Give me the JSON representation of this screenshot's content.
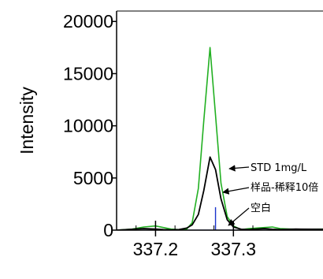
{
  "chart_data": {
    "type": "line",
    "ylabel": "Intensity",
    "xlabel": "",
    "xlim": [
      337.15,
      337.415
    ],
    "ylim": [
      0,
      21000
    ],
    "yticks": [
      0,
      5000,
      10000,
      15000,
      20000
    ],
    "ytick_labels": [
      "0",
      "5000",
      "10000",
      "15000",
      "20000"
    ],
    "xticks": [
      337.2,
      337.3
    ],
    "xtick_labels": [
      "337.2",
      "337.3"
    ],
    "series": [
      {
        "name": "STD 1mg/L",
        "color": "#22b022",
        "x": [
          337.15,
          337.17,
          337.185,
          337.2,
          337.21,
          337.22,
          337.23,
          337.24,
          337.247,
          337.255,
          337.262,
          337.27,
          337.277,
          337.284,
          337.292,
          337.3,
          337.31,
          337.32,
          337.34,
          337.35,
          337.36,
          337.38,
          337.415
        ],
        "y": [
          0,
          100,
          300,
          400,
          250,
          100,
          50,
          100,
          700,
          4000,
          10500,
          17500,
          11000,
          4500,
          1300,
          400,
          50,
          150,
          250,
          300,
          150,
          80,
          100
        ]
      },
      {
        "name": "样品-稀释10倍",
        "color": "#000000",
        "x": [
          337.15,
          337.17,
          337.185,
          337.2,
          337.21,
          337.22,
          337.23,
          337.24,
          337.247,
          337.255,
          337.262,
          337.27,
          337.277,
          337.284,
          337.292,
          337.3,
          337.31,
          337.32,
          337.34,
          337.35,
          337.36,
          337.38,
          337.415
        ],
        "y": [
          0,
          80,
          150,
          100,
          50,
          30,
          50,
          200,
          500,
          1500,
          3800,
          7000,
          5800,
          3000,
          1000,
          300,
          80,
          50,
          150,
          80,
          50,
          100,
          80
        ]
      },
      {
        "name": "空白",
        "color": "#1a33cc",
        "type": "stick",
        "x": [
          337.2,
          337.277,
          337.3,
          337.36
        ],
        "y": [
          50,
          2200,
          800,
          40
        ]
      }
    ],
    "annotations": [
      "STD 1mg/L",
      "样品-稀释10倍",
      "空白"
    ],
    "grid": false,
    "legend": "inline-arrows"
  }
}
